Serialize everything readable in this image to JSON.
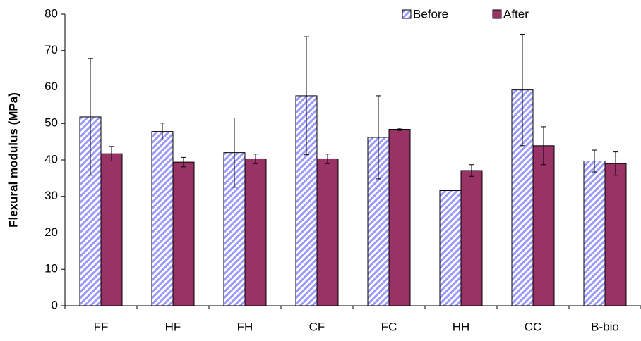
{
  "chart_data": {
    "type": "bar",
    "y_label": "Flexural modulus (MPa)",
    "categories": [
      "FF",
      "HF",
      "FH",
      "CF",
      "FC",
      "HH",
      "CC",
      "B-bio"
    ],
    "series": [
      {
        "name": "Before",
        "color": "#9999ff",
        "values": [
          51.8,
          47.8,
          42,
          57.6,
          46.2,
          31.6,
          59.2,
          39.7
        ],
        "errors": [
          16,
          2.3,
          9.5,
          16.2,
          11.4,
          0,
          15.3,
          3
        ]
      },
      {
        "name": "After",
        "color": "#993366",
        "values": [
          41.7,
          39.4,
          40.3,
          40.3,
          48.4,
          37.1,
          43.9,
          39
        ],
        "errors": [
          2,
          1.3,
          1.3,
          1.3,
          0.3,
          1.6,
          5.2,
          3.2
        ]
      }
    ],
    "ylim": [
      0,
      80
    ],
    "yticks": [
      0,
      10,
      20,
      30,
      40,
      50,
      60,
      70,
      80
    ],
    "grid": false,
    "legend": "top-right"
  }
}
